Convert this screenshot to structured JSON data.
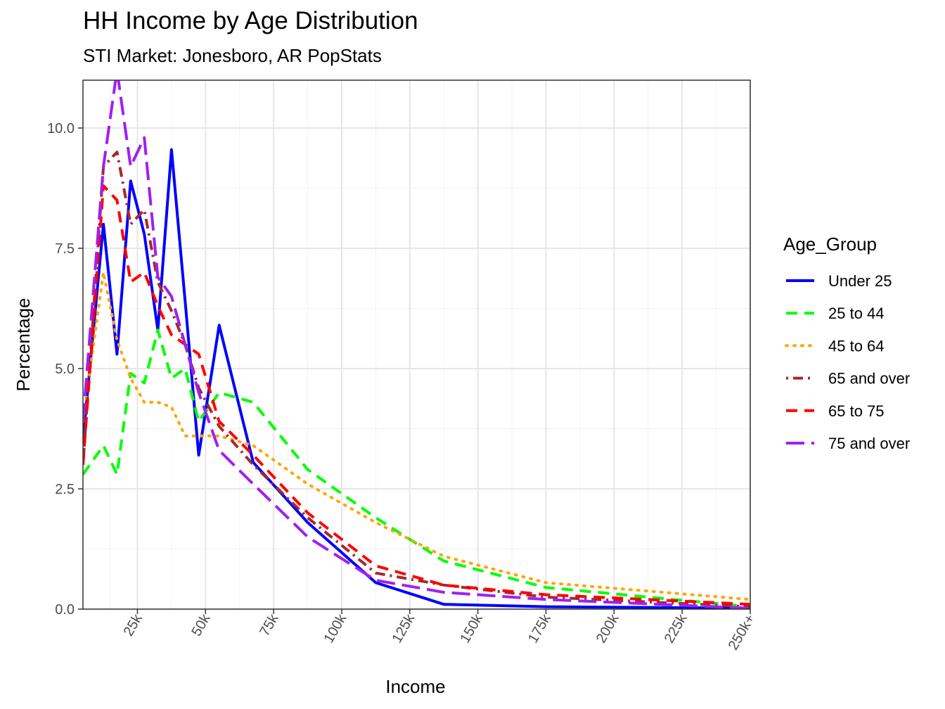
{
  "chart_data": {
    "type": "line",
    "title": "HH Income by Age Distribution",
    "subtitle": "STI Market: Jonesboro, AR PopStats",
    "xlabel": "Income",
    "ylabel": "Percentage",
    "x": [
      5,
      12.5,
      17.5,
      22.5,
      27.5,
      32.5,
      37.5,
      42.5,
      47.5,
      55,
      67.5,
      87.5,
      112.5,
      137.5,
      175,
      250
    ],
    "xlim": [
      5,
      250
    ],
    "ylim": [
      0,
      11
    ],
    "x_ticks": [
      {
        "value": 25,
        "label": "25k"
      },
      {
        "value": 50,
        "label": "50k"
      },
      {
        "value": 75,
        "label": "75k"
      },
      {
        "value": 100,
        "label": "100k"
      },
      {
        "value": 125,
        "label": "125k"
      },
      {
        "value": 150,
        "label": "150k"
      },
      {
        "value": 175,
        "label": "175k"
      },
      {
        "value": 200,
        "label": "200k"
      },
      {
        "value": 225,
        "label": "225k"
      },
      {
        "value": 250,
        "label": "250k+"
      }
    ],
    "y_ticks": [
      {
        "value": 0,
        "label": "0.0"
      },
      {
        "value": 2.5,
        "label": "2.5"
      },
      {
        "value": 5,
        "label": "5.0"
      },
      {
        "value": 7.5,
        "label": "7.5"
      },
      {
        "value": 10,
        "label": "10.0"
      }
    ],
    "grid": true,
    "legend": {
      "title": "Age_Group",
      "position": "right"
    },
    "series": [
      {
        "name": "Under 25",
        "color": "#0000FF",
        "dash": "solid",
        "values": [
          3.5,
          8.0,
          5.3,
          8.9,
          7.8,
          5.8,
          9.55,
          6.4,
          3.2,
          5.9,
          3.05,
          1.8,
          0.55,
          0.1,
          0.05,
          0.02
        ]
      },
      {
        "name": "25 to 44",
        "color": "#00FF00",
        "dash": "dashed",
        "values": [
          2.8,
          3.4,
          2.8,
          4.9,
          4.7,
          5.8,
          4.8,
          5.0,
          3.9,
          4.5,
          4.3,
          2.9,
          1.9,
          1.0,
          0.45,
          0.05
        ]
      },
      {
        "name": "45 to 64",
        "color": "#FFA500",
        "dash": "dotted",
        "values": [
          3.9,
          7.0,
          5.6,
          4.8,
          4.3,
          4.3,
          4.2,
          3.6,
          3.6,
          3.6,
          3.4,
          2.6,
          1.8,
          1.1,
          0.55,
          0.2
        ]
      },
      {
        "name": "65 and over",
        "color": "#A52A2A",
        "dash": "dotdash",
        "values": [
          3.0,
          9.2,
          9.5,
          8.0,
          8.3,
          6.8,
          6.2,
          5.5,
          4.6,
          3.8,
          3.0,
          1.9,
          0.75,
          0.5,
          0.25,
          0.05
        ]
      },
      {
        "name": "65 to 75",
        "color": "#FF0000",
        "dash": "dashed",
        "values": [
          3.0,
          8.8,
          8.5,
          6.8,
          7.0,
          6.3,
          5.7,
          5.5,
          5.3,
          3.9,
          3.2,
          2.0,
          0.9,
          0.5,
          0.3,
          0.1
        ]
      },
      {
        "name": "75 and over",
        "color": "#A020F0",
        "dash": "longdash",
        "values": [
          3.9,
          9.2,
          11.2,
          9.2,
          9.8,
          6.9,
          6.5,
          5.5,
          4.5,
          3.3,
          2.6,
          1.5,
          0.6,
          0.35,
          0.2,
          0.02
        ]
      }
    ]
  }
}
